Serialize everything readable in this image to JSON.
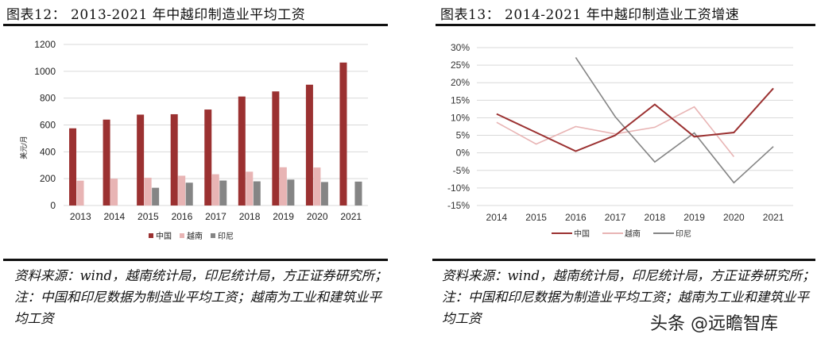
{
  "left": {
    "title": "图表12：  2013-2021 年中越印制造业平均工资",
    "source": "资料来源：wind，越南统计局，印尼统计局，方正证券研究所；注：中国和印尼数据为制造业平均工资；越南为工业和建筑业平均工资"
  },
  "right": {
    "title": "图表13：  2014-2021 年中越印制造业工资增速",
    "source": "资料来源：wind，越南统计局，印尼统计局，方正证券研究所；注：中国和印尼数据为制造业平均工资；越南为工业和建筑业平均工资"
  },
  "watermark": "头条 @远瞻智库",
  "colors": {
    "china": "#9b3131",
    "vietnam": "#e8b4b4",
    "indonesia": "#858585",
    "grid": "#d9d9d9"
  },
  "chart_data": [
    {
      "type": "bar",
      "title": "2013-2021 年中越印制造业平均工资",
      "xlabel": "",
      "ylabel": "美元/月",
      "ylim": [
        0,
        1200
      ],
      "yticks": [
        0,
        200,
        400,
        600,
        800,
        1000,
        1200
      ],
      "grid": true,
      "legend_position": "bottom",
      "categories": [
        "2013",
        "2014",
        "2015",
        "2016",
        "2017",
        "2018",
        "2019",
        "2020",
        "2021"
      ],
      "series": [
        {
          "name": "中国",
          "values": [
            575,
            640,
            677,
            680,
            715,
            812,
            850,
            900,
            1065
          ]
        },
        {
          "name": "越南",
          "values": [
            185,
            200,
            207,
            222,
            233,
            252,
            285,
            283,
            null
          ]
        },
        {
          "name": "印尼",
          "values": [
            null,
            null,
            132,
            170,
            186,
            180,
            193,
            175,
            178
          ]
        }
      ]
    },
    {
      "type": "line",
      "title": "2014-2021 年中越印制造业工资增速",
      "xlabel": "",
      "ylabel": "",
      "ylim": [
        -15,
        30
      ],
      "yticks": [
        "-15%",
        "-10%",
        "-5%",
        "0%",
        "5%",
        "10%",
        "15%",
        "20%",
        "25%",
        "30%"
      ],
      "grid": true,
      "legend_position": "bottom",
      "categories": [
        "2014",
        "2015",
        "2016",
        "2017",
        "2018",
        "2019",
        "2020",
        "2021"
      ],
      "series": [
        {
          "name": "中国",
          "values": [
            11.1,
            5.8,
            0.5,
            5.0,
            13.8,
            4.6,
            5.8,
            18.4
          ]
        },
        {
          "name": "越南",
          "values": [
            8.7,
            2.5,
            7.5,
            5.4,
            7.3,
            13.1,
            -1.1,
            null
          ]
        },
        {
          "name": "印尼",
          "values": [
            null,
            null,
            27.2,
            10.3,
            -2.6,
            5.7,
            -8.5,
            1.8
          ]
        }
      ]
    }
  ]
}
